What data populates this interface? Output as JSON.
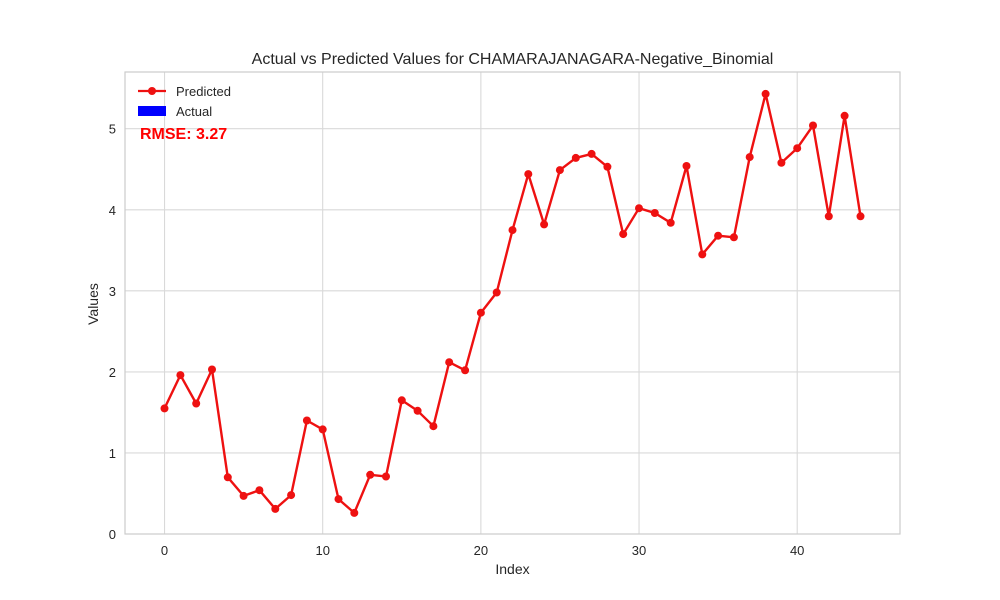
{
  "chart_data": {
    "type": "line",
    "title": "Actual vs Predicted Values for CHAMARAJANAGARA-Negative_Binomial",
    "xlabel": "Index",
    "ylabel": "Values",
    "xlim": [
      -2.5,
      46.5
    ],
    "ylim": [
      0,
      5.7
    ],
    "x_ticks": [
      0,
      10,
      20,
      30,
      40
    ],
    "y_ticks": [
      0,
      1,
      2,
      3,
      4,
      5
    ],
    "grid": true,
    "legend_position": "top-left",
    "annotation": "RMSE: 3.27",
    "annotation_color": "#ff0000",
    "series": [
      {
        "name": "Predicted",
        "style": "line-with-markers",
        "color": "#ee1111",
        "x": [
          0,
          1,
          2,
          3,
          4,
          5,
          6,
          7,
          8,
          9,
          10,
          11,
          12,
          13,
          14,
          15,
          16,
          17,
          18,
          19,
          20,
          21,
          22,
          23,
          24,
          25,
          26,
          27,
          28,
          29,
          30,
          31,
          32,
          33,
          34,
          35,
          36,
          37,
          38,
          39,
          40,
          41,
          42,
          43,
          44
        ],
        "values": [
          1.55,
          1.96,
          1.61,
          2.03,
          0.7,
          0.47,
          0.54,
          0.31,
          0.48,
          1.4,
          1.29,
          0.43,
          0.26,
          0.73,
          0.71,
          1.65,
          1.52,
          1.33,
          2.12,
          2.02,
          2.73,
          2.98,
          3.75,
          4.44,
          3.82,
          4.49,
          4.64,
          4.69,
          4.53,
          3.7,
          4.02,
          3.96,
          3.84,
          4.54,
          3.45,
          3.68,
          3.66,
          4.65,
          5.43,
          4.58,
          4.76,
          5.04,
          3.92,
          5.16,
          3.92
        ]
      },
      {
        "name": "Actual",
        "style": "bar",
        "color": "#0000ff",
        "x": [],
        "values": []
      }
    ]
  }
}
